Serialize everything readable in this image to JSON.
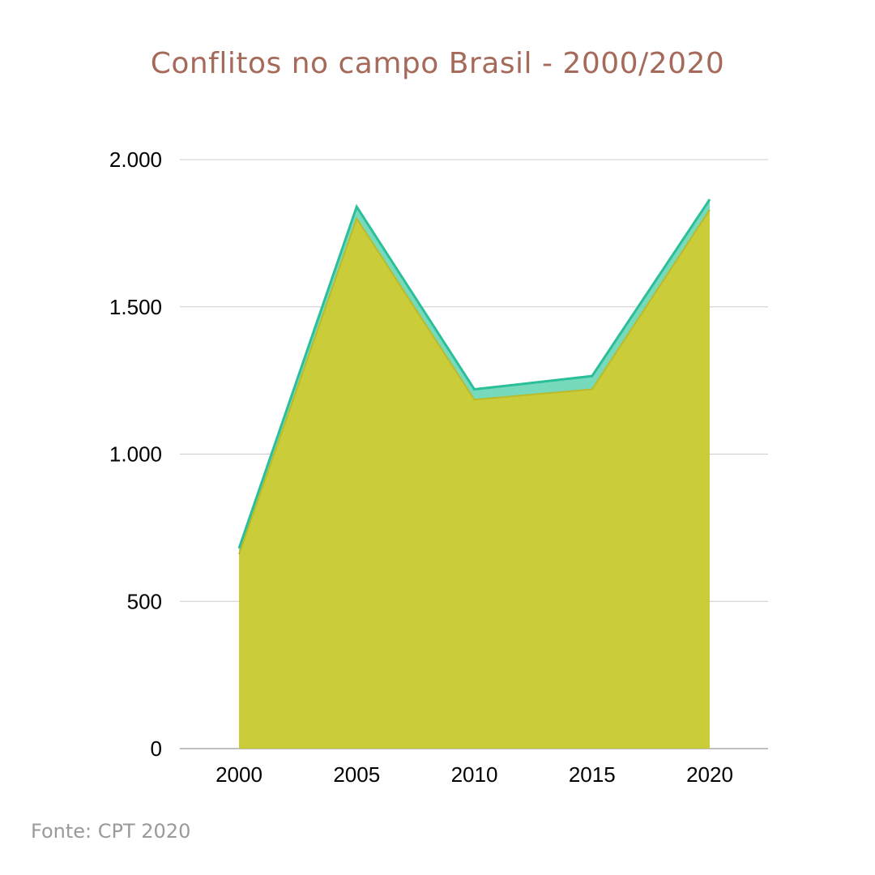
{
  "title": "Conflitos no campo Brasil - 2000/2020",
  "source": "Fonte: CPT 2020",
  "colors": {
    "title": "#a56a5a",
    "series_bottom": "#c8c92f",
    "series_top": "#5fd3b0",
    "series_top_line": "#2bbf99",
    "grid": "#cccccc",
    "axis_text": "#000000",
    "source": "#9a9a9a"
  },
  "chart_data": {
    "type": "area",
    "stacked": true,
    "x": [
      "2000",
      "2005",
      "2010",
      "2015",
      "2020"
    ],
    "series": [
      {
        "values": [
          660,
          1800,
          1185,
          1220,
          1830
        ]
      },
      {
        "values": [
          20,
          40,
          35,
          45,
          35
        ]
      }
    ],
    "ylim": [
      0,
      2000
    ],
    "yticks": [
      0,
      500,
      1000,
      1500,
      2000
    ],
    "ytick_labels": [
      "0",
      "500",
      "1.000",
      "1.500",
      "2.000"
    ],
    "grid": true,
    "legend": "none"
  }
}
